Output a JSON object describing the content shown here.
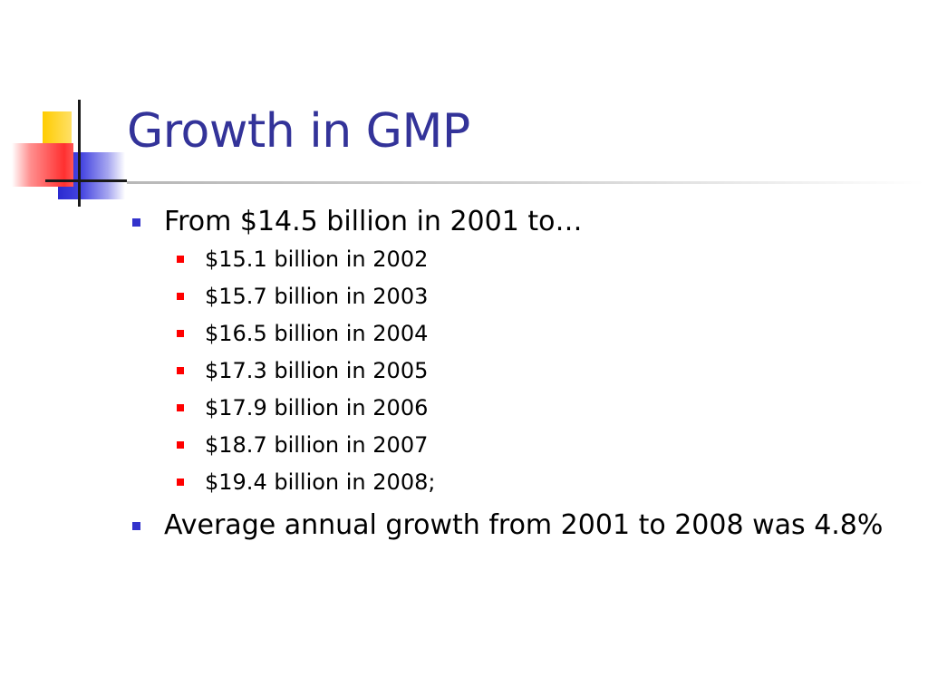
{
  "slide": {
    "title": "Growth in GMP",
    "bullets": [
      {
        "text": "From $14.5 billion in 2001 to…",
        "sub": [
          "$15.1 billion in 2002",
          "$15.7 billion in 2003",
          "$16.5 billion in 2004",
          "$17.3 billion in 2005",
          "$17.9 billion in 2006",
          "$18.7 billion in 2007",
          "$19.4 billion in 2008;"
        ]
      },
      {
        "text": "Average annual growth from 2001 to 2008 was 4.8%"
      }
    ]
  },
  "colors": {
    "title": "#333399",
    "level1_bullet": "#3333cc",
    "level2_bullet": "#ff0000",
    "text": "#000000"
  }
}
